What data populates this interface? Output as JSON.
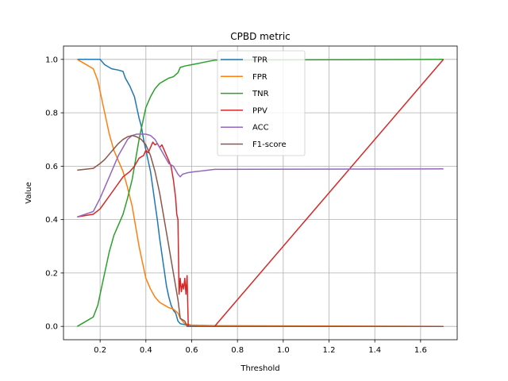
{
  "chart_data": {
    "type": "line",
    "title": "CPBD metric",
    "xlabel": "Threshold",
    "ylabel": "Value",
    "xlim": [
      0.04,
      1.76
    ],
    "ylim": [
      -0.05,
      1.05
    ],
    "xticks": [
      0.2,
      0.4,
      0.6,
      0.8,
      1.0,
      1.2,
      1.4,
      1.6
    ],
    "xtick_labels": [
      "0.2",
      "0.4",
      "0.6",
      "0.8",
      "1.0",
      "1.2",
      "1.4",
      "1.6"
    ],
    "yticks": [
      0.0,
      0.2,
      0.4,
      0.6,
      0.8,
      1.0
    ],
    "ytick_labels": [
      "0.0",
      "0.2",
      "0.4",
      "0.6",
      "0.8",
      "1.0"
    ],
    "grid": true,
    "legend_position": "top-center",
    "series": [
      {
        "name": "TPR",
        "color": "#1f77b4",
        "points": [
          [
            0.1,
            1.0
          ],
          [
            0.2,
            1.0
          ],
          [
            0.22,
            0.98
          ],
          [
            0.25,
            0.965
          ],
          [
            0.28,
            0.96
          ],
          [
            0.3,
            0.955
          ],
          [
            0.31,
            0.93
          ],
          [
            0.33,
            0.9
          ],
          [
            0.35,
            0.86
          ],
          [
            0.36,
            0.82
          ],
          [
            0.37,
            0.78
          ],
          [
            0.38,
            0.75
          ],
          [
            0.39,
            0.7
          ],
          [
            0.4,
            0.66
          ],
          [
            0.41,
            0.62
          ],
          [
            0.42,
            0.58
          ],
          [
            0.43,
            0.52
          ],
          [
            0.44,
            0.46
          ],
          [
            0.45,
            0.4
          ],
          [
            0.46,
            0.33
          ],
          [
            0.47,
            0.27
          ],
          [
            0.48,
            0.21
          ],
          [
            0.49,
            0.15
          ],
          [
            0.5,
            0.11
          ],
          [
            0.51,
            0.08
          ],
          [
            0.52,
            0.06
          ],
          [
            0.53,
            0.05
          ],
          [
            0.54,
            0.02
          ],
          [
            0.55,
            0.01
          ],
          [
            0.58,
            0.005
          ],
          [
            0.7,
            0.0
          ],
          [
            1.7,
            0.0
          ]
        ]
      },
      {
        "name": "FPR",
        "color": "#ff7f0e",
        "points": [
          [
            0.1,
            1.0
          ],
          [
            0.12,
            0.99
          ],
          [
            0.15,
            0.975
          ],
          [
            0.17,
            0.965
          ],
          [
            0.19,
            0.92
          ],
          [
            0.2,
            0.88
          ],
          [
            0.21,
            0.84
          ],
          [
            0.22,
            0.8
          ],
          [
            0.23,
            0.76
          ],
          [
            0.24,
            0.72
          ],
          [
            0.25,
            0.69
          ],
          [
            0.26,
            0.66
          ],
          [
            0.28,
            0.62
          ],
          [
            0.3,
            0.58
          ],
          [
            0.32,
            0.52
          ],
          [
            0.34,
            0.45
          ],
          [
            0.35,
            0.4
          ],
          [
            0.36,
            0.35
          ],
          [
            0.37,
            0.3
          ],
          [
            0.38,
            0.26
          ],
          [
            0.39,
            0.22
          ],
          [
            0.4,
            0.18
          ],
          [
            0.42,
            0.14
          ],
          [
            0.44,
            0.11
          ],
          [
            0.46,
            0.09
          ],
          [
            0.48,
            0.08
          ],
          [
            0.5,
            0.07
          ],
          [
            0.52,
            0.065
          ],
          [
            0.54,
            0.05
          ],
          [
            0.55,
            0.03
          ],
          [
            0.57,
            0.01
          ],
          [
            0.6,
            0.005
          ],
          [
            0.7,
            0.003
          ],
          [
            1.7,
            0.0
          ]
        ]
      },
      {
        "name": "TNR",
        "color": "#2ca02c",
        "points": [
          [
            0.1,
            0.0
          ],
          [
            0.12,
            0.01
          ],
          [
            0.15,
            0.025
          ],
          [
            0.17,
            0.035
          ],
          [
            0.19,
            0.08
          ],
          [
            0.2,
            0.12
          ],
          [
            0.21,
            0.16
          ],
          [
            0.22,
            0.2
          ],
          [
            0.23,
            0.24
          ],
          [
            0.24,
            0.28
          ],
          [
            0.25,
            0.31
          ],
          [
            0.26,
            0.34
          ],
          [
            0.28,
            0.38
          ],
          [
            0.3,
            0.42
          ],
          [
            0.32,
            0.48
          ],
          [
            0.34,
            0.55
          ],
          [
            0.35,
            0.6
          ],
          [
            0.36,
            0.65
          ],
          [
            0.37,
            0.7
          ],
          [
            0.38,
            0.74
          ],
          [
            0.39,
            0.78
          ],
          [
            0.4,
            0.82
          ],
          [
            0.42,
            0.86
          ],
          [
            0.44,
            0.89
          ],
          [
            0.46,
            0.91
          ],
          [
            0.48,
            0.92
          ],
          [
            0.5,
            0.93
          ],
          [
            0.52,
            0.935
          ],
          [
            0.54,
            0.95
          ],
          [
            0.55,
            0.97
          ],
          [
            0.57,
            0.975
          ],
          [
            0.6,
            0.98
          ],
          [
            0.7,
            0.997
          ],
          [
            1.7,
            1.0
          ]
        ]
      },
      {
        "name": "PPV",
        "color": "#d62728",
        "points": [
          [
            0.1,
            0.41
          ],
          [
            0.17,
            0.42
          ],
          [
            0.2,
            0.44
          ],
          [
            0.25,
            0.5
          ],
          [
            0.3,
            0.56
          ],
          [
            0.33,
            0.58
          ],
          [
            0.35,
            0.6
          ],
          [
            0.37,
            0.63
          ],
          [
            0.39,
            0.64
          ],
          [
            0.4,
            0.66
          ],
          [
            0.41,
            0.65
          ],
          [
            0.42,
            0.67
          ],
          [
            0.43,
            0.69
          ],
          [
            0.44,
            0.68
          ],
          [
            0.45,
            0.685
          ],
          [
            0.46,
            0.67
          ],
          [
            0.47,
            0.68
          ],
          [
            0.48,
            0.66
          ],
          [
            0.49,
            0.64
          ],
          [
            0.5,
            0.62
          ],
          [
            0.51,
            0.6
          ],
          [
            0.52,
            0.55
          ],
          [
            0.53,
            0.48
          ],
          [
            0.535,
            0.42
          ],
          [
            0.54,
            0.4
          ],
          [
            0.545,
            0.12
          ],
          [
            0.55,
            0.18
          ],
          [
            0.555,
            0.13
          ],
          [
            0.56,
            0.16
          ],
          [
            0.565,
            0.14
          ],
          [
            0.57,
            0.18
          ],
          [
            0.575,
            0.12
          ],
          [
            0.58,
            0.19
          ],
          [
            0.585,
            0.0
          ],
          [
            0.7,
            0.0
          ],
          [
            1.7,
            1.0
          ]
        ]
      },
      {
        "name": "ACC",
        "color": "#9467bd",
        "points": [
          [
            0.1,
            0.41
          ],
          [
            0.17,
            0.43
          ],
          [
            0.2,
            0.48
          ],
          [
            0.22,
            0.52
          ],
          [
            0.24,
            0.56
          ],
          [
            0.26,
            0.6
          ],
          [
            0.28,
            0.64
          ],
          [
            0.3,
            0.67
          ],
          [
            0.32,
            0.7
          ],
          [
            0.34,
            0.715
          ],
          [
            0.36,
            0.72
          ],
          [
            0.38,
            0.72
          ],
          [
            0.4,
            0.72
          ],
          [
            0.42,
            0.715
          ],
          [
            0.44,
            0.7
          ],
          [
            0.46,
            0.67
          ],
          [
            0.48,
            0.64
          ],
          [
            0.5,
            0.61
          ],
          [
            0.52,
            0.6
          ],
          [
            0.54,
            0.57
          ],
          [
            0.55,
            0.56
          ],
          [
            0.56,
            0.57
          ],
          [
            0.58,
            0.575
          ],
          [
            0.6,
            0.578
          ],
          [
            0.7,
            0.588
          ],
          [
            1.7,
            0.59
          ]
        ]
      },
      {
        "name": "F1-score",
        "color": "#8c564b",
        "points": [
          [
            0.1,
            0.585
          ],
          [
            0.17,
            0.592
          ],
          [
            0.2,
            0.61
          ],
          [
            0.22,
            0.625
          ],
          [
            0.24,
            0.645
          ],
          [
            0.26,
            0.665
          ],
          [
            0.28,
            0.685
          ],
          [
            0.3,
            0.7
          ],
          [
            0.32,
            0.71
          ],
          [
            0.34,
            0.715
          ],
          [
            0.36,
            0.71
          ],
          [
            0.38,
            0.7
          ],
          [
            0.4,
            0.68
          ],
          [
            0.42,
            0.64
          ],
          [
            0.44,
            0.58
          ],
          [
            0.46,
            0.5
          ],
          [
            0.48,
            0.4
          ],
          [
            0.5,
            0.3
          ],
          [
            0.52,
            0.2
          ],
          [
            0.54,
            0.1
          ],
          [
            0.55,
            0.03
          ],
          [
            0.57,
            0.02
          ],
          [
            0.58,
            0.0
          ],
          [
            0.7,
            0.0
          ],
          [
            1.7,
            0.0
          ]
        ]
      }
    ]
  }
}
